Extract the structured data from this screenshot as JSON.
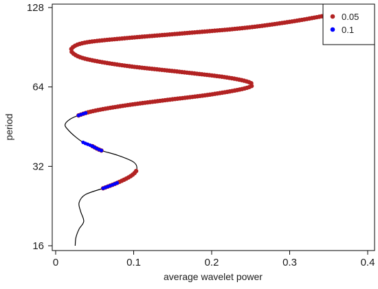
{
  "chart_data": {
    "type": "line",
    "title": "",
    "xlabel": "average wavelet power",
    "ylabel": "period",
    "xlim": [
      0,
      0.4
    ],
    "ylim": [
      16,
      128
    ],
    "yscale": "log2",
    "x_ticks": [
      0,
      0.1,
      0.2,
      0.3,
      0.4
    ],
    "x_tick_labels": [
      "0",
      "0.1",
      "0.2",
      "0.3",
      "0.4"
    ],
    "y_ticks": [
      16,
      32,
      64,
      128
    ],
    "y_tick_labels": [
      "16",
      "32",
      "64",
      "128"
    ],
    "grid": false,
    "legend": {
      "position": "top-right",
      "entries": [
        {
          "label": "0.05",
          "color": "#b22222"
        },
        {
          "label": "0.1",
          "color": "#0000ff"
        }
      ]
    },
    "series": [
      {
        "kind": "line",
        "color": "#000000",
        "points": [
          [
            0.025,
            16
          ],
          [
            0.026,
            17.2
          ],
          [
            0.03,
            18.5
          ],
          [
            0.036,
            19.8
          ],
          [
            0.032,
            21.6
          ],
          [
            0.03,
            23.3
          ],
          [
            0.038,
            25
          ],
          [
            0.062,
            26.5
          ],
          [
            0.08,
            27.8
          ],
          [
            0.097,
            29.5
          ],
          [
            0.104,
            31.2
          ],
          [
            0.1,
            33.2
          ],
          [
            0.08,
            35.2
          ],
          [
            0.058,
            36.8
          ],
          [
            0.046,
            38.3
          ],
          [
            0.035,
            39.5
          ],
          [
            0.025,
            41.5
          ],
          [
            0.016,
            44
          ],
          [
            0.012,
            46
          ],
          [
            0.018,
            48.2
          ],
          [
            0.03,
            50
          ],
          [
            0.05,
            52
          ],
          [
            0.09,
            54.5
          ],
          [
            0.14,
            57
          ],
          [
            0.2,
            60
          ],
          [
            0.245,
            63.5
          ],
          [
            0.25,
            66.3
          ],
          [
            0.22,
            69.5
          ],
          [
            0.16,
            73
          ],
          [
            0.09,
            77
          ],
          [
            0.04,
            81.6
          ],
          [
            0.022,
            86
          ],
          [
            0.022,
            90.5
          ],
          [
            0.04,
            94.5
          ],
          [
            0.09,
            98
          ],
          [
            0.16,
            102
          ],
          [
            0.24,
            107
          ],
          [
            0.3,
            113
          ],
          [
            0.35,
            120
          ],
          [
            0.39,
            127
          ]
        ]
      },
      {
        "kind": "points",
        "name": "0.05",
        "color": "#b22222",
        "segments": [
          [
            0.062,
            0.104
          ],
          [
            0.046,
            0.058
          ],
          [
            0.03,
            0.39
          ]
        ]
      },
      {
        "kind": "points",
        "name": "0.1",
        "color": "#0000ff",
        "segments": [
          [
            0.062,
            0.08
          ],
          [
            0.035,
            0.058
          ],
          [
            0.03,
            0.04
          ]
        ]
      }
    ]
  }
}
